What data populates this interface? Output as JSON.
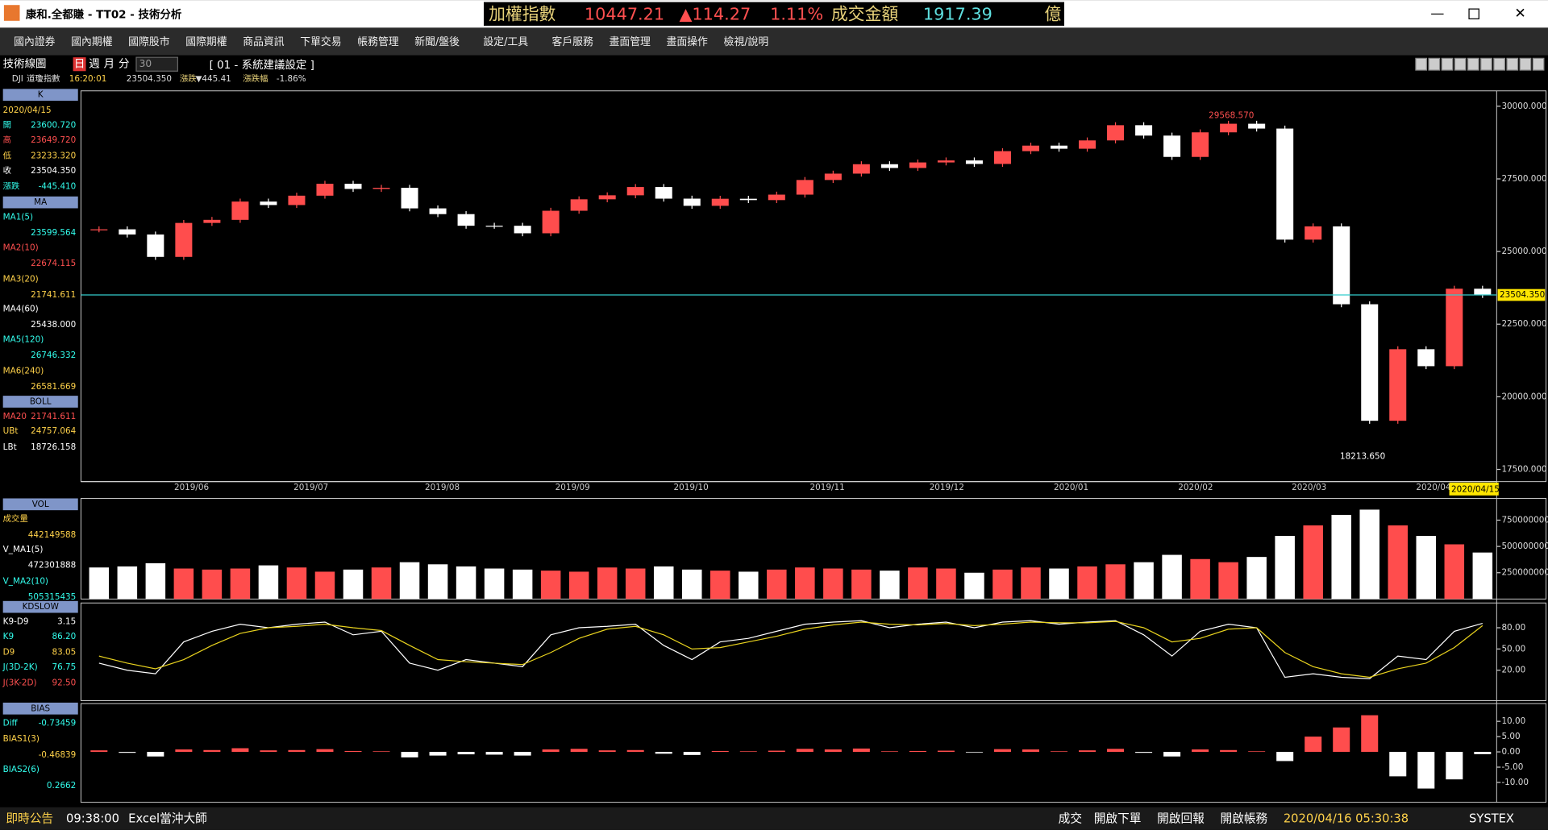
{
  "title_bar": {
    "app": "康和.全都賺 - TT02 - 技術分析",
    "ticker": [
      "加權指數",
      "10447.21",
      "▲114.27",
      "1.11%",
      "成交金額",
      "1917.39",
      "億"
    ]
  },
  "menu": [
    "國內證券",
    "國內期權",
    "國際股市",
    "國際期權",
    "商品資訊",
    "下單交易",
    "帳務管理",
    "新聞/盤後",
    "設定/工具",
    "客戶服務",
    "畫面管理",
    "畫面操作",
    "檢視/說明"
  ],
  "toolbar": {
    "name": "技術線圖",
    "periods": [
      "日",
      "週",
      "月",
      "分"
    ],
    "count": "30",
    "setting": "[ 01 - 系統建議設定 ]"
  },
  "info": [
    "DJI",
    "道瓊指數",
    "16:20:01",
    "23504.350",
    "漲跌",
    "▼445.41",
    "漲跌幅",
    "-1.86%"
  ],
  "left_panel": [
    {
      "header": "K",
      "rows": [
        {
          "label": "2020/04/15"
        },
        {
          "label": "開",
          "value": "23600.720"
        },
        {
          "label": "高",
          "value": "23649.720"
        },
        {
          "label": "低",
          "value": "23233.320"
        },
        {
          "label": "收",
          "value": "23504.350"
        },
        {
          "label": "漲跌",
          "value": "-445.410"
        }
      ]
    },
    {
      "header": "MA",
      "rows": [
        {
          "label": "MA1(5)",
          "value": "23599.564"
        },
        {
          "label": "MA2(10)",
          "value": "22674.115"
        },
        {
          "label": "MA3(20)",
          "value": "21741.611"
        },
        {
          "label": "MA4(60)",
          "value": "25438.000"
        },
        {
          "label": "MA5(120)",
          "value": "26746.332"
        },
        {
          "label": "MA6(240)",
          "value": "26581.669"
        }
      ]
    },
    {
      "header": "BOLL",
      "rows": [
        {
          "label": "MA20",
          "value": "21741.611"
        },
        {
          "label": "UBt",
          "value": "24757.064"
        },
        {
          "label": "LBt",
          "value": "18726.158"
        }
      ]
    },
    {
      "header": "VOL",
      "rows": [
        {
          "label": "成交量",
          "value": "442149588"
        },
        {
          "label": "V_MA1(5)",
          "value": "472301888"
        },
        {
          "label": "V_MA2(10)",
          "value": "505315435"
        }
      ]
    },
    {
      "header": "KDSLOW",
      "rows": [
        {
          "label": "K9-D9",
          "value": "3.15"
        },
        {
          "label": "K9",
          "value": "86.20"
        },
        {
          "label": "D9",
          "value": "83.05"
        },
        {
          "label": "J(3D-2K)",
          "value": "76.75"
        },
        {
          "label": "J(3K-2D)",
          "value": "92.50"
        }
      ]
    },
    {
      "header": "BIAS",
      "rows": [
        {
          "label": "Diff",
          "value": "-0.73459"
        },
        {
          "label": "BIAS1(3)",
          "value": "-0.46839"
        },
        {
          "label": "BIAS2(6)",
          "value": "0.2662"
        }
      ]
    }
  ],
  "price_panel": {
    "ylim": [
      17080,
      30530
    ],
    "yticks": [
      {
        "value": 17500,
        "label": "17500.000"
      },
      {
        "value": 20000,
        "label": "20000.000"
      },
      {
        "value": 22500,
        "label": "22500.000"
      },
      {
        "value": 25000,
        "label": "25000.000"
      },
      {
        "value": 27500,
        "label": "27500.000"
      },
      {
        "value": 30000,
        "label": "30000.000"
      }
    ],
    "months": [
      "2019/06",
      "2019/07",
      "2019/08",
      "2019/09",
      "2019/10",
      "2019/11",
      "2019/12",
      "2020/01",
      "2020/02",
      "2020/03",
      "2020/04"
    ],
    "closes": [
      25764,
      25585,
      24815,
      25984,
      26090,
      26719,
      26600,
      26922,
      27332,
      27154,
      27192,
      26485,
      26287,
      25887,
      25886,
      25628,
      26403,
      26797,
      26935,
      27220,
      26820,
      26573,
      26816,
      26770,
      26958,
      27462,
      27681,
      28005,
      27876,
      28066,
      28135,
      28015,
      28455,
      28645,
      28538,
      28824,
      29348,
      28990,
      28256,
      29102,
      29398,
      29232,
      25409,
      25865,
      23185,
      19174,
      21637,
      21053,
      23719,
      23504
    ],
    "high_label": {
      "value": 29568.57,
      "label": "29568.570"
    },
    "low_label": {
      "value": 18213.65,
      "label": "18213.650"
    },
    "last": {
      "value": 23504.35,
      "label": "23504.350"
    },
    "last_date": "2020/04/15"
  },
  "volume_panel": {
    "ylim": [
      0,
      957000000
    ],
    "yticks": [
      250000000,
      500000000,
      750000000
    ],
    "values": [
      300000000,
      310000000,
      340000000,
      290000000,
      280000000,
      290000000,
      320000000,
      300000000,
      260000000,
      280000000,
      300000000,
      350000000,
      330000000,
      310000000,
      290000000,
      280000000,
      270000000,
      260000000,
      300000000,
      290000000,
      310000000,
      280000000,
      270000000,
      260000000,
      280000000,
      300000000,
      290000000,
      280000000,
      270000000,
      300000000,
      290000000,
      250000000,
      280000000,
      300000000,
      290000000,
      310000000,
      330000000,
      350000000,
      420000000,
      380000000,
      350000000,
      400000000,
      600000000,
      700000000,
      800000000,
      850000000,
      700000000,
      600000000,
      520000000,
      442149588
    ]
  },
  "kd_panel": {
    "ylim": [
      -23,
      115
    ],
    "yticks": [
      {
        "value": 20,
        "label": "20.00"
      },
      {
        "value": 50,
        "label": "50.00"
      },
      {
        "value": 80,
        "label": "80.00"
      }
    ],
    "k": [
      30,
      20,
      15,
      60,
      75,
      85,
      80,
      85,
      88,
      70,
      75,
      30,
      20,
      35,
      30,
      25,
      70,
      80,
      82,
      85,
      55,
      35,
      60,
      65,
      75,
      85,
      88,
      90,
      80,
      85,
      88,
      80,
      88,
      90,
      85,
      88,
      90,
      70,
      40,
      75,
      85,
      80,
      10,
      15,
      10,
      8,
      40,
      35,
      75,
      86.2
    ],
    "d": [
      40,
      30,
      22,
      35,
      55,
      72,
      80,
      82,
      85,
      80,
      76,
      55,
      35,
      32,
      30,
      28,
      45,
      65,
      78,
      82,
      70,
      50,
      52,
      60,
      68,
      78,
      84,
      88,
      85,
      84,
      86,
      83,
      85,
      88,
      87,
      87,
      89,
      80,
      60,
      65,
      78,
      80,
      45,
      25,
      15,
      10,
      22,
      30,
      52,
      83.05
    ]
  },
  "bias_panel": {
    "ylim": [
      -16.5,
      15.8
    ],
    "yticks": [
      {
        "value": -10,
        "label": "-10.00"
      },
      {
        "value": -5,
        "label": "-5.00"
      },
      {
        "value": 0,
        "label": "0.00"
      },
      {
        "value": 5,
        "label": "5.00"
      },
      {
        "value": 10,
        "label": "10.00"
      }
    ],
    "values": [
      0.5,
      -0.3,
      -1.5,
      0.8,
      0.6,
      1.2,
      0.5,
      0.6,
      0.9,
      0.3,
      0.2,
      -1.8,
      -1.2,
      -0.8,
      -0.9,
      -1.2,
      0.8,
      1,
      0.5,
      0.6,
      -0.6,
      -1,
      0.3,
      0.2,
      0.4,
      1,
      0.8,
      1.1,
      0.2,
      0.3,
      0.4,
      -0.2,
      0.9,
      0.8,
      0.2,
      0.5,
      1,
      -0.3,
      -1.5,
      0.8,
      0.6,
      0.2,
      -3,
      5,
      8,
      12,
      -8,
      -12,
      -9,
      -0.73459
    ]
  },
  "status_bar": [
    "即時公告",
    "09:38:00",
    "Excel當沖大師",
    "成交",
    "開啟下單",
    "開啟回報",
    "開啟帳務",
    "2020/04/16 05:30:38",
    "SYSTEX"
  ]
}
